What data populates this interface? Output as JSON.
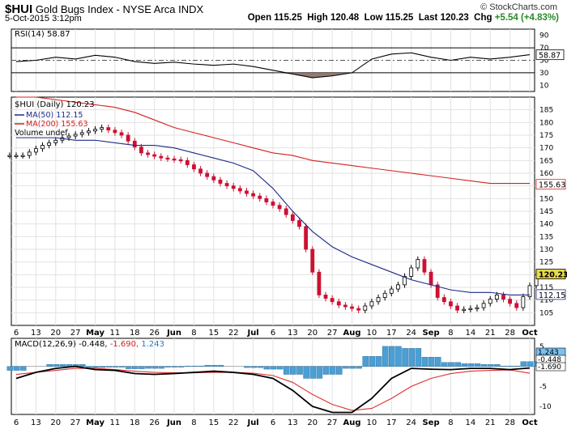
{
  "header": {
    "symbol": "$HUI",
    "name": "Gold Bugs Index - NYSE Arca INDX",
    "datetime": "5-Oct-2015 3:12pm",
    "open_label": "Open",
    "open": "115.25",
    "high_label": "High",
    "high": "120.48",
    "low_label": "Low",
    "low": "115.25",
    "last_label": "Last",
    "last": "120.23",
    "chg_label": "Chg",
    "chg": "+5.54 (+4.83%)",
    "copyright": "© StockCharts.com"
  },
  "rsi": {
    "legend": "RSI(14) 58.87",
    "current": "58.87",
    "ticks": [
      "90",
      "70",
      "50",
      "30",
      "10"
    ]
  },
  "price_legend": {
    "main": "$HUI (Daily) 120.23",
    "ma50": "MA(50) 112.15",
    "ma200": "MA(200) 155.63",
    "volume": "Volume undef"
  },
  "price_tags": {
    "last": "120.23",
    "ma50": "112.15",
    "ma200": "155.63"
  },
  "price_ticks": [
    "185",
    "180",
    "175",
    "170",
    "165",
    "160",
    "155",
    "150",
    "145",
    "140",
    "135",
    "130",
    "125",
    "120",
    "115",
    "110",
    "105"
  ],
  "date_ticks": [
    "6",
    "13",
    "20",
    "27",
    "May",
    "11",
    "18",
    "26",
    "Jun",
    "8",
    "15",
    "22",
    "Jul",
    "6",
    "13",
    "20",
    "27",
    "Aug",
    "10",
    "17",
    "24",
    "Sep",
    "8",
    "14",
    "21",
    "28",
    "Oct"
  ],
  "macd": {
    "legend_prefix": "MACD(12,26,9)",
    "v1": "-0.448",
    "v2": "-1.690",
    "v3": "1.243",
    "tags": [
      "1.243",
      "-0.448",
      "-1.690"
    ],
    "ticks": [
      "5",
      "0",
      "-5",
      "-10"
    ]
  },
  "colors": {
    "up_candle": "#000000",
    "down_candle": "#cc1133",
    "ma50": "#1c2a8a",
    "ma200": "#d42020",
    "rsi_fill": "#8b6b62",
    "macd_hist": "#4a9fd4",
    "chg_up": "#2a8a2a",
    "last_tag": "#e8d94a"
  },
  "chart_data": [
    {
      "type": "line",
      "title": "RSI(14)",
      "x": [
        "6",
        "13",
        "20",
        "27",
        "May",
        "11",
        "18",
        "26",
        "Jun",
        "8",
        "15",
        "22",
        "Jul",
        "6",
        "13",
        "20",
        "27",
        "Aug",
        "10",
        "17",
        "24",
        "Sep",
        "8",
        "14",
        "21",
        "28",
        "Oct"
      ],
      "series": [
        {
          "name": "RSI(14)",
          "values": [
            48,
            50,
            55,
            52,
            58,
            55,
            48,
            45,
            47,
            44,
            42,
            44,
            40,
            34,
            28,
            22,
            25,
            30,
            52,
            60,
            62,
            55,
            50,
            55,
            52,
            55,
            59
          ]
        }
      ],
      "ylim": [
        10,
        90
      ]
    },
    {
      "type": "candlestick",
      "title": "$HUI (Daily)",
      "x": [
        "6",
        "13",
        "20",
        "27",
        "May",
        "11",
        "18",
        "26",
        "Jun",
        "8",
        "15",
        "22",
        "Jul",
        "6",
        "13",
        "20",
        "27",
        "Aug",
        "10",
        "17",
        "24",
        "Sep",
        "8",
        "14",
        "21",
        "28",
        "Oct"
      ],
      "series": [
        {
          "name": "$HUI (Daily)",
          "values": [
            167,
            171,
            174,
            176,
            178,
            175,
            168,
            166,
            165,
            160,
            156,
            153,
            150,
            146,
            139,
            112,
            108,
            106,
            111,
            116,
            126,
            111,
            106,
            107,
            112,
            107,
            120
          ]
        },
        {
          "name": "MA(50)",
          "values": [
            174,
            174,
            174,
            173,
            173,
            172,
            171,
            171,
            170,
            168,
            166,
            164,
            161,
            154,
            145,
            137,
            131,
            127,
            124,
            121,
            118,
            116,
            114,
            113,
            113,
            112,
            112
          ]
        },
        {
          "name": "MA(200)",
          "values": [
            190,
            190,
            189,
            188,
            187,
            186,
            184,
            181,
            178,
            176,
            174,
            172,
            170,
            168,
            167,
            165,
            164,
            163,
            162,
            161,
            160,
            159,
            158,
            157,
            156,
            156,
            156
          ]
        }
      ],
      "ylim": [
        102,
        190
      ]
    },
    {
      "type": "line",
      "title": "MACD(12,26,9)",
      "x": [
        "6",
        "13",
        "20",
        "27",
        "May",
        "11",
        "18",
        "26",
        "Jun",
        "8",
        "15",
        "22",
        "Jul",
        "6",
        "13",
        "20",
        "27",
        "Aug",
        "10",
        "17",
        "24",
        "Sep",
        "8",
        "14",
        "21",
        "28",
        "Oct"
      ],
      "series": [
        {
          "name": "MACD",
          "values": [
            -3,
            -1.5,
            -0.5,
            0,
            -0.8,
            -1,
            -1.8,
            -2,
            -1.8,
            -1.5,
            -1.2,
            -1.5,
            -2,
            -3,
            -6,
            -10,
            -11.5,
            -11.5,
            -8,
            -3,
            -0.5,
            -0.7,
            -0.8,
            -0.5,
            -0.5,
            -0.8,
            -0.4
          ]
        },
        {
          "name": "Signal",
          "values": [
            -2,
            -1.5,
            -1,
            -0.5,
            -0.5,
            -0.8,
            -1.2,
            -1.5,
            -1.6,
            -1.6,
            -1.5,
            -1.5,
            -1.7,
            -2.3,
            -4,
            -7,
            -9.5,
            -11,
            -10.5,
            -8,
            -5,
            -3,
            -1.8,
            -1.2,
            -1,
            -0.9,
            -1.7
          ]
        },
        {
          "name": "Histogram",
          "values": [
            -1,
            0,
            0.5,
            0.5,
            -0.3,
            -0.2,
            -0.6,
            -0.5,
            -0.2,
            0.1,
            0.3,
            0,
            -0.3,
            -0.7,
            -2,
            -3,
            -2,
            -0.5,
            2.5,
            5,
            4.5,
            2.3,
            1,
            0.7,
            0.5,
            0.1,
            1.2
          ]
        }
      ],
      "ylim": [
        -12,
        6
      ]
    }
  ]
}
